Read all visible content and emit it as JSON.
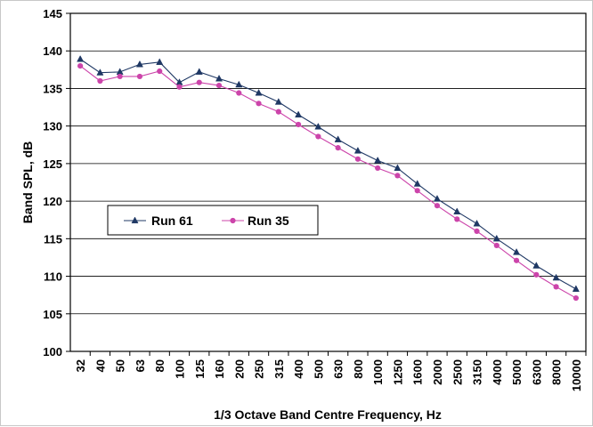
{
  "chart_data": {
    "type": "line",
    "title": "",
    "xlabel": "1/3 Octave Band Centre Frequency, Hz",
    "ylabel": "Band SPL, dB",
    "ylim": [
      100,
      145
    ],
    "yticks": [
      100,
      105,
      110,
      115,
      120,
      125,
      130,
      135,
      140,
      145
    ],
    "grid": "horizontal",
    "legend_position": "left-middle",
    "categories": [
      "32",
      "40",
      "50",
      "63",
      "80",
      "100",
      "125",
      "160",
      "200",
      "250",
      "315",
      "400",
      "500",
      "630",
      "800",
      "1000",
      "1250",
      "1600",
      "2000",
      "2500",
      "3150",
      "4000",
      "5000",
      "6300",
      "8000",
      "10000"
    ],
    "series": [
      {
        "name": "Run 61",
        "color": "#1f3864",
        "marker": "triangle",
        "values": [
          138.9,
          137.1,
          137.2,
          138.2,
          138.5,
          135.8,
          137.2,
          136.3,
          135.5,
          134.4,
          133.2,
          131.5,
          129.9,
          128.2,
          126.7,
          125.4,
          124.4,
          122.3,
          120.3,
          118.6,
          117.0,
          115.0,
          113.2,
          111.4,
          109.8,
          108.3
        ]
      },
      {
        "name": "Run 35",
        "color": "#cc44aa",
        "marker": "circle",
        "values": [
          138.0,
          136.0,
          136.6,
          136.6,
          137.3,
          135.2,
          135.8,
          135.4,
          134.4,
          133.0,
          131.9,
          130.2,
          128.6,
          127.1,
          125.6,
          124.4,
          123.4,
          121.4,
          119.4,
          117.6,
          116.0,
          114.1,
          112.1,
          110.2,
          108.6,
          107.1
        ]
      }
    ]
  }
}
